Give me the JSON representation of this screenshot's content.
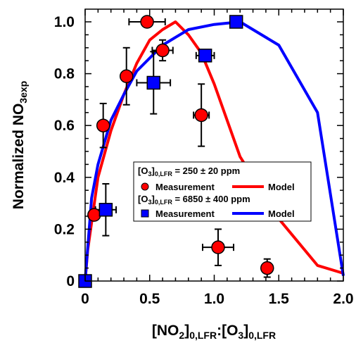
{
  "chart_data": {
    "type": "scatter",
    "xlabel": {
      "main": "[NO",
      "sub1": "2",
      "mid1": "]",
      "sub2": "0,LFR",
      "mid2": ":[O",
      "sub3": "3",
      "mid3": "]",
      "sub4": "0,LFR"
    },
    "ylabel": {
      "main": "Normalized NO",
      "sub": "3exp"
    },
    "xlim": [
      0,
      2.0
    ],
    "ylim": [
      0,
      1.05
    ],
    "x_ticks": [
      {
        "value": 0,
        "label": "0"
      },
      {
        "value": 0.5,
        "label": "0.5"
      },
      {
        "value": 1.0,
        "label": "1.0"
      },
      {
        "value": 1.5,
        "label": "1.5"
      },
      {
        "value": 2.0,
        "label": "2.0"
      }
    ],
    "y_ticks": [
      {
        "value": 0,
        "label": "0"
      },
      {
        "value": 0.2,
        "label": "0.2"
      },
      {
        "value": 0.4,
        "label": "0.4"
      },
      {
        "value": 0.6,
        "label": "0.6"
      },
      {
        "value": 0.8,
        "label": "0.8"
      },
      {
        "value": 1.0,
        "label": "1.0"
      }
    ],
    "grid": false,
    "legend_position": "center-right",
    "legend": {
      "group1_title": {
        "pre": "[O",
        "sub1": "3",
        "mid": "]",
        "sub2": "0,LFR",
        "post": " = 250 ± 20 ppm"
      },
      "group1_measurement": "Measurement",
      "group1_model": "Model",
      "group2_title": {
        "pre": "[O",
        "sub1": "3",
        "mid": "]",
        "sub2": "0,LFR",
        "post": " = 6850 ± 400 ppm"
      },
      "group2_measurement": "Measurement",
      "group2_model": "Model"
    },
    "series": [
      {
        "group": "250 ppm",
        "kind": "measurement",
        "marker": "circle",
        "color": "#ff0000",
        "points": [
          {
            "x": 0.07,
            "y": 0.255,
            "xerr": 0.03,
            "yerr": 0.0
          },
          {
            "x": 0.14,
            "y": 0.6,
            "xerr": 0.03,
            "yerr": 0.085
          },
          {
            "x": 0.32,
            "y": 0.79,
            "xerr": 0.0,
            "yerr": 0.11
          },
          {
            "x": 0.48,
            "y": 1.0,
            "xerr": 0.14,
            "yerr": 0.0
          },
          {
            "x": 0.6,
            "y": 0.89,
            "xerr": 0.08,
            "yerr": 0.04
          },
          {
            "x": 0.9,
            "y": 0.64,
            "xerr": 0.06,
            "yerr": 0.12
          },
          {
            "x": 1.03,
            "y": 0.13,
            "xerr": 0.12,
            "yerr": 0.07
          },
          {
            "x": 1.41,
            "y": 0.05,
            "xerr": 0.0,
            "yerr": 0.035
          }
        ]
      },
      {
        "group": "6850 ppm",
        "kind": "measurement",
        "marker": "square",
        "color": "#0000ff",
        "points": [
          {
            "x": 0.0,
            "y": 0.0,
            "xerr": 0.0,
            "yerr": 0.0
          },
          {
            "x": 0.16,
            "y": 0.275,
            "xerr": 0.08,
            "yerr": 0.1
          },
          {
            "x": 0.53,
            "y": 0.765,
            "xerr": 0.13,
            "yerr": 0.12
          },
          {
            "x": 0.93,
            "y": 0.87,
            "xerr": 0.07,
            "yerr": 0.0
          },
          {
            "x": 1.17,
            "y": 1.0,
            "xerr": 0.0,
            "yerr": 0.0
          }
        ]
      },
      {
        "group": "250 ppm",
        "kind": "model",
        "color": "#ff0000",
        "x": [
          0.0,
          0.02,
          0.1,
          0.2,
          0.3,
          0.4,
          0.5,
          0.6,
          0.7,
          0.8,
          0.9,
          1.0,
          1.2,
          1.5,
          1.8,
          2.0
        ],
        "y": [
          0.0,
          0.12,
          0.4,
          0.58,
          0.72,
          0.84,
          0.93,
          0.97,
          1.0,
          0.95,
          0.88,
          0.76,
          0.48,
          0.24,
          0.06,
          0.03
        ]
      },
      {
        "group": "6850 ppm",
        "kind": "model",
        "color": "#0000ff",
        "x": [
          0.0,
          0.05,
          0.1,
          0.2,
          0.3,
          0.4,
          0.6,
          0.8,
          1.0,
          1.2,
          1.5,
          1.8,
          2.0
        ],
        "y": [
          0.0,
          0.32,
          0.45,
          0.62,
          0.72,
          0.81,
          0.91,
          0.97,
          0.99,
          1.0,
          0.91,
          0.65,
          0.02
        ]
      }
    ]
  }
}
